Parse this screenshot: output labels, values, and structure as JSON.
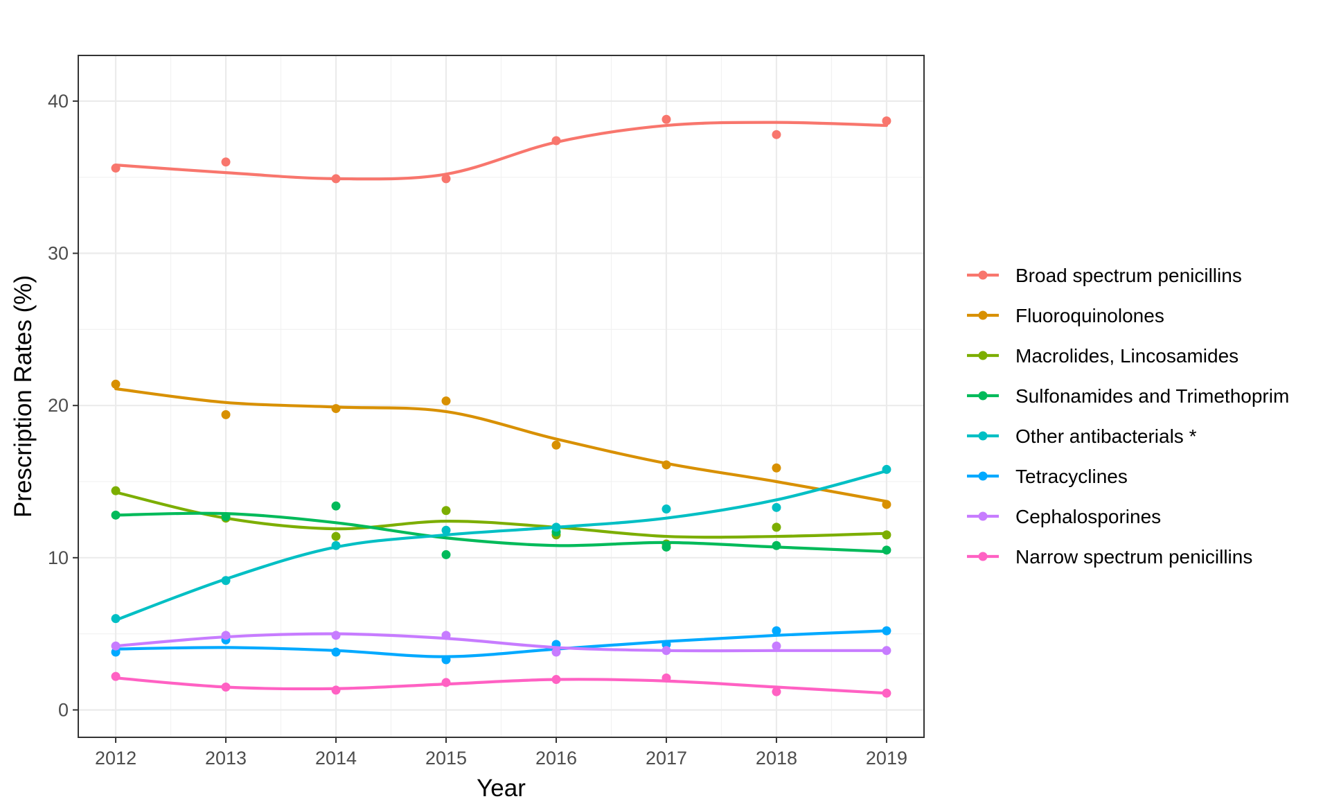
{
  "chart_data": {
    "type": "line",
    "xlabel": "Year",
    "ylabel": "Prescription Rates (%)",
    "x": [
      2012,
      2013,
      2014,
      2015,
      2016,
      2017,
      2018,
      2019
    ],
    "x_ticks": [
      "2012",
      "2013",
      "2014",
      "2015",
      "2016",
      "2017",
      "2018",
      "2019"
    ],
    "xlim": [
      2011.66,
      2019.34
    ],
    "ylim": [
      -1.8,
      43
    ],
    "y_ticks": [
      0,
      10,
      20,
      30,
      40
    ],
    "y_tick_labels": [
      "0",
      "10",
      "20",
      "30",
      "40"
    ],
    "grid": true,
    "legend_position": "right",
    "series": [
      {
        "name": "Broad spectrum penicillins",
        "color": "#F8766D",
        "points": [
          35.6,
          36.0,
          34.9,
          34.9,
          37.4,
          38.8,
          37.8,
          38.7
        ],
        "smooth": [
          35.8,
          35.3,
          34.9,
          35.2,
          37.3,
          38.4,
          38.6,
          38.4
        ]
      },
      {
        "name": "Fluoroquinolones",
        "color": "#D89000",
        "points": [
          21.4,
          19.4,
          19.8,
          20.3,
          17.4,
          16.1,
          15.9,
          13.5
        ],
        "smooth": [
          21.1,
          20.2,
          19.9,
          19.6,
          17.8,
          16.2,
          15.0,
          13.7
        ]
      },
      {
        "name": "Macrolides, Lincosamides",
        "color": "#7CAE00",
        "points": [
          14.4,
          12.6,
          11.4,
          13.1,
          11.5,
          10.9,
          12.0,
          11.5
        ],
        "smooth": [
          14.3,
          12.6,
          11.9,
          12.4,
          12.0,
          11.4,
          11.4,
          11.6
        ]
      },
      {
        "name": "Sulfonamides and Trimethoprim",
        "color": "#00BA5A",
        "points": [
          12.8,
          12.7,
          13.4,
          10.2,
          11.7,
          10.7,
          10.8,
          10.5
        ],
        "smooth": [
          12.8,
          12.9,
          12.3,
          11.3,
          10.8,
          11.0,
          10.7,
          10.4
        ]
      },
      {
        "name": "Other antibacterials *",
        "color": "#00BFC4",
        "points": [
          6.0,
          8.5,
          10.8,
          11.8,
          12.0,
          13.2,
          13.3,
          15.8
        ],
        "smooth": [
          5.9,
          8.6,
          10.7,
          11.5,
          12.0,
          12.6,
          13.8,
          15.7
        ]
      },
      {
        "name": "Tetracyclines",
        "color": "#00A9FF",
        "points": [
          3.8,
          4.6,
          3.8,
          3.3,
          4.3,
          4.3,
          5.2,
          5.2
        ],
        "smooth": [
          4.0,
          4.1,
          3.9,
          3.5,
          4.0,
          4.5,
          4.9,
          5.2
        ]
      },
      {
        "name": "Cephalosporines",
        "color": "#C77CFF",
        "points": [
          4.2,
          4.9,
          4.9,
          4.9,
          3.8,
          3.9,
          4.2,
          3.9
        ],
        "smooth": [
          4.2,
          4.8,
          5.0,
          4.7,
          4.1,
          3.9,
          3.9,
          3.9
        ]
      },
      {
        "name": "Narrow spectrum penicillins",
        "color": "#FF61C3",
        "points": [
          2.2,
          1.5,
          1.3,
          1.8,
          2.0,
          2.1,
          1.2,
          1.1
        ],
        "smooth": [
          2.1,
          1.5,
          1.4,
          1.7,
          2.0,
          1.9,
          1.5,
          1.1
        ]
      }
    ]
  }
}
